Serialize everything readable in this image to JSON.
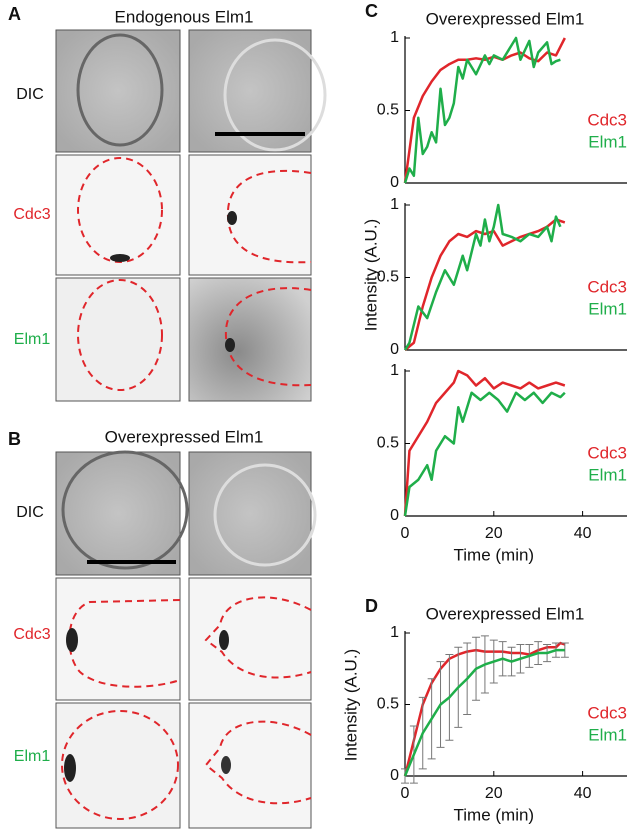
{
  "panels": {
    "A": {
      "letter": "A",
      "title": "Endogenous Elm1",
      "rows": [
        "DIC",
        "Cdc3",
        "Elm1"
      ]
    },
    "B": {
      "letter": "B",
      "title": "Overexpressed Elm1",
      "rows": [
        "DIC",
        "Cdc3",
        "Elm1"
      ]
    }
  },
  "chart_data": [
    {
      "type": "line",
      "panel_label": "C",
      "title": "Overexpressed Elm1",
      "xlim": [
        0,
        50
      ],
      "ylim": [
        0,
        1
      ],
      "yticks": [
        0,
        0.5,
        1
      ],
      "legend": "lower right",
      "series": [
        {
          "name": "Cdc3",
          "color": "#e0262b",
          "x": [
            0,
            2,
            4,
            6,
            8,
            10,
            12,
            14,
            16,
            18,
            20,
            22,
            24,
            26,
            28,
            30,
            32,
            34,
            36
          ],
          "values": [
            0,
            0.45,
            0.6,
            0.7,
            0.78,
            0.82,
            0.85,
            0.85,
            0.86,
            0.85,
            0.87,
            0.85,
            0.88,
            0.9,
            0.86,
            0.84,
            0.9,
            0.88,
            1.0
          ]
        },
        {
          "name": "Elm1",
          "color": "#1fae4a",
          "x": [
            0,
            1,
            2,
            3,
            4,
            5,
            6,
            7,
            8,
            9,
            10,
            11,
            12,
            13,
            14,
            16,
            18,
            19,
            20,
            22,
            24,
            25,
            26,
            28,
            29,
            30,
            32,
            33,
            34,
            35
          ],
          "values": [
            0,
            0.1,
            0.05,
            0.45,
            0.2,
            0.25,
            0.35,
            0.28,
            0.65,
            0.4,
            0.45,
            0.55,
            0.8,
            0.72,
            0.85,
            0.75,
            0.88,
            0.82,
            0.88,
            0.85,
            0.95,
            1.0,
            0.85,
            0.98,
            0.8,
            0.9,
            0.97,
            0.82,
            0.84,
            0.85
          ]
        }
      ]
    },
    {
      "type": "line",
      "ylabel": "Intensity (A.U.)",
      "xlim": [
        0,
        50
      ],
      "ylim": [
        0,
        1
      ],
      "yticks": [
        0,
        0.5,
        1
      ],
      "legend": "lower right",
      "series": [
        {
          "name": "Cdc3",
          "color": "#e0262b",
          "x": [
            0,
            2,
            4,
            6,
            8,
            10,
            12,
            14,
            16,
            18,
            20,
            22,
            24,
            26,
            28,
            30,
            32,
            34,
            36
          ],
          "values": [
            0,
            0.05,
            0.3,
            0.5,
            0.65,
            0.75,
            0.8,
            0.78,
            0.82,
            0.8,
            0.82,
            0.72,
            0.75,
            0.78,
            0.8,
            0.82,
            0.85,
            0.9,
            0.88
          ]
        },
        {
          "name": "Elm1",
          "color": "#1fae4a",
          "x": [
            0,
            1,
            3,
            5,
            7,
            9,
            11,
            13,
            14,
            16,
            17,
            18,
            19,
            20,
            21,
            22,
            24,
            26,
            28,
            30,
            32,
            33,
            34,
            35
          ],
          "values": [
            0,
            0.05,
            0.3,
            0.22,
            0.4,
            0.55,
            0.45,
            0.65,
            0.55,
            0.8,
            0.72,
            0.9,
            0.75,
            0.85,
            1.0,
            0.8,
            0.78,
            0.75,
            0.8,
            0.78,
            0.85,
            0.75,
            0.92,
            0.85
          ]
        }
      ]
    },
    {
      "type": "line",
      "xlabel": "Time (min)",
      "xlim": [
        0,
        50
      ],
      "xticks": [
        0,
        20,
        40
      ],
      "ylim": [
        0,
        1
      ],
      "yticks": [
        0,
        0.5,
        1
      ],
      "legend": "lower right",
      "series": [
        {
          "name": "Cdc3",
          "color": "#e0262b",
          "x": [
            0,
            1,
            3,
            5,
            7,
            9,
            11,
            12,
            14,
            16,
            18,
            20,
            22,
            24,
            26,
            28,
            30,
            32,
            34,
            36
          ],
          "values": [
            0,
            0.45,
            0.55,
            0.65,
            0.78,
            0.85,
            0.92,
            1.0,
            0.97,
            0.9,
            0.95,
            0.88,
            0.92,
            0.9,
            0.88,
            0.92,
            0.88,
            0.9,
            0.92,
            0.9
          ]
        },
        {
          "name": "Elm1",
          "color": "#1fae4a",
          "x": [
            0,
            1,
            3,
            5,
            6,
            7,
            9,
            11,
            12,
            13,
            15,
            17,
            19,
            21,
            23,
            25,
            27,
            29,
            31,
            33,
            35,
            36
          ],
          "values": [
            0,
            0.2,
            0.25,
            0.35,
            0.25,
            0.45,
            0.55,
            0.5,
            0.75,
            0.65,
            0.85,
            0.8,
            0.85,
            0.8,
            0.72,
            0.85,
            0.8,
            0.85,
            0.78,
            0.85,
            0.82,
            0.85
          ]
        }
      ]
    },
    {
      "type": "line",
      "panel_label": "D",
      "title": "Overexpressed Elm1",
      "ylabel": "Intensity (A.U.)",
      "xlabel": "Time (min)",
      "xlim": [
        0,
        50
      ],
      "xticks": [
        0,
        20,
        40
      ],
      "ylim": [
        0,
        1
      ],
      "yticks": [
        0,
        0.5,
        1
      ],
      "legend": "lower right",
      "series": [
        {
          "name": "Cdc3",
          "color": "#e0262b",
          "x": [
            0,
            2,
            4,
            6,
            8,
            10,
            12,
            14,
            16,
            18,
            20,
            22,
            24,
            26,
            28,
            30,
            32,
            34,
            35,
            36
          ],
          "values": [
            0,
            0.25,
            0.5,
            0.65,
            0.75,
            0.82,
            0.85,
            0.87,
            0.88,
            0.87,
            0.87,
            0.87,
            0.86,
            0.86,
            0.85,
            0.88,
            0.9,
            0.9,
            0.93,
            0.92
          ]
        },
        {
          "name": "Elm1",
          "color": "#1fae4a",
          "x": [
            0,
            2,
            4,
            6,
            8,
            10,
            12,
            14,
            16,
            18,
            20,
            22,
            24,
            26,
            28,
            30,
            32,
            34,
            36
          ],
          "values": [
            0,
            0.15,
            0.3,
            0.4,
            0.5,
            0.55,
            0.62,
            0.68,
            0.75,
            0.78,
            0.8,
            0.82,
            0.8,
            0.82,
            0.84,
            0.86,
            0.86,
            0.88,
            0.88
          ],
          "errors": [
            0.05,
            0.2,
            0.25,
            0.28,
            0.3,
            0.3,
            0.28,
            0.25,
            0.22,
            0.2,
            0.15,
            0.12,
            0.1,
            0.1,
            0.08,
            0.08,
            0.06,
            0.05,
            0.05
          ],
          "error_color": "#777"
        }
      ]
    }
  ]
}
